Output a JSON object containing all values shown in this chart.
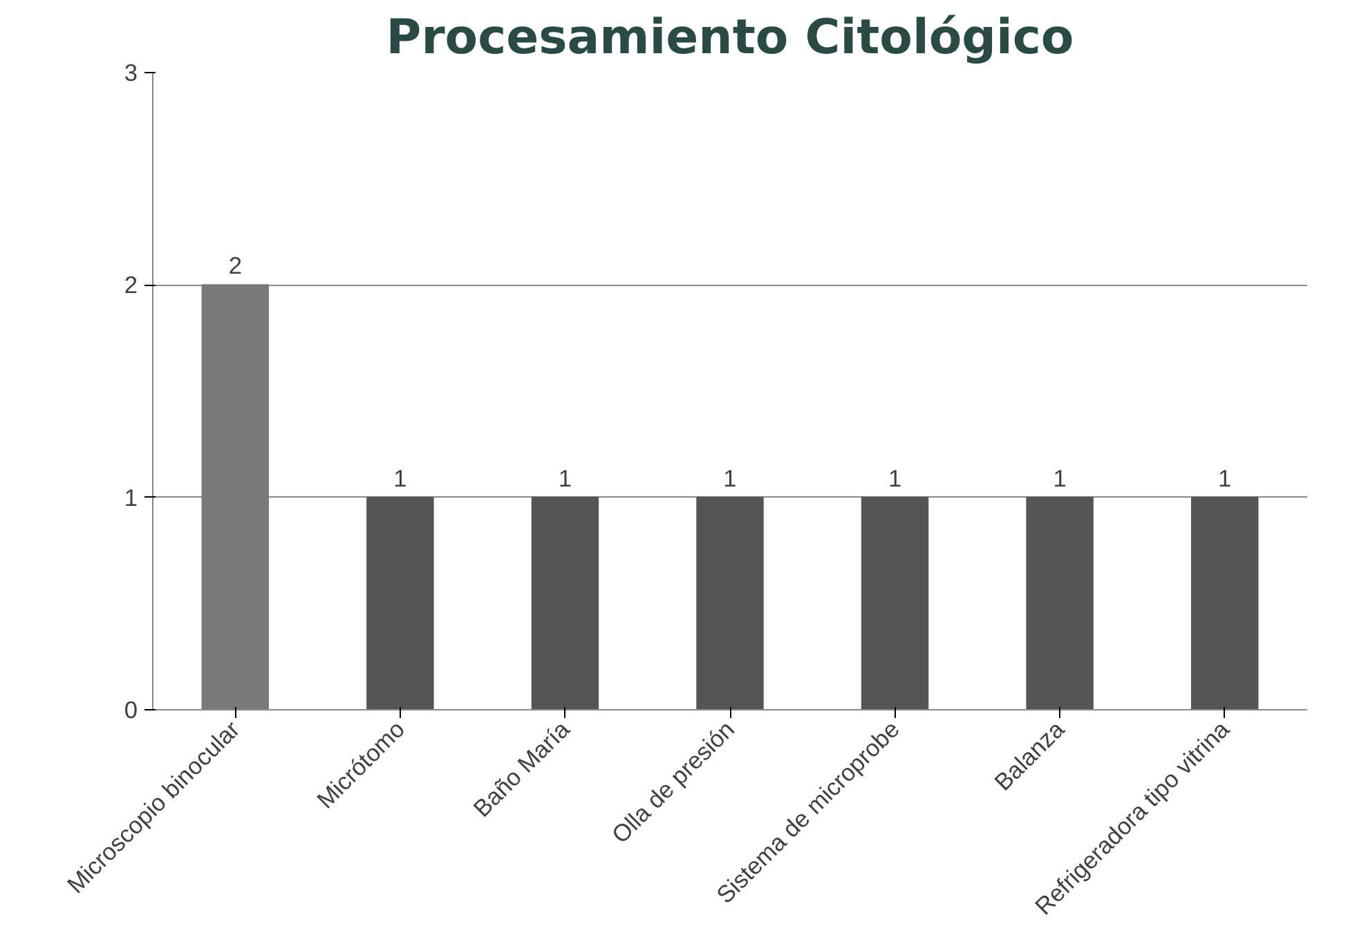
{
  "chart_data": {
    "type": "bar",
    "title": "Procesamiento Citológico",
    "categories": [
      "Microscopio binocular",
      "Micrótomo",
      "Baño María",
      "Olla de presión",
      "Sistema de microprobe",
      "Balanza",
      "Refrigeradora tipo vitrina"
    ],
    "values": [
      2,
      1,
      1,
      1,
      1,
      1,
      1
    ],
    "colors": [
      "#7a7a7a",
      "#555555",
      "#555555",
      "#555555",
      "#555555",
      "#555555",
      "#555555"
    ],
    "ylim": [
      0,
      3
    ],
    "yticks": [
      0,
      1,
      2,
      3
    ],
    "grid": "y",
    "data_labels": true
  }
}
